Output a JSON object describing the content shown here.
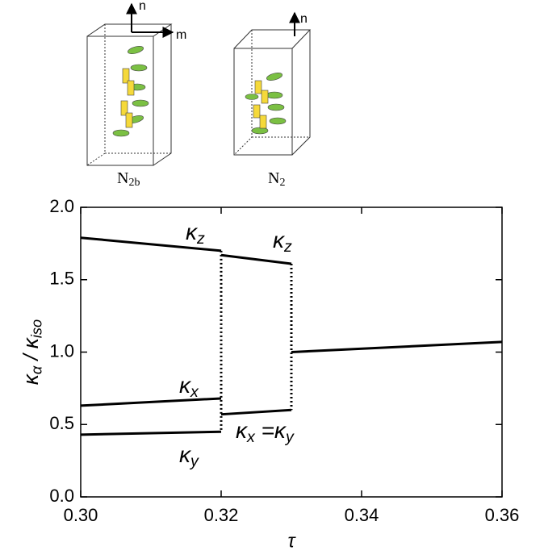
{
  "chart_data": {
    "type": "line",
    "x_label": "τ",
    "y_label": [
      {
        "text": "κ"
      },
      {
        "text": "α",
        "sub": true
      },
      {
        "text": " / κ"
      },
      {
        "text": "iso",
        "sub": true
      }
    ],
    "xlim": [
      0.3,
      0.36
    ],
    "xticks": [
      {
        "value": 0.3,
        "label": "0.30"
      },
      {
        "value": 0.32,
        "label": "0.32"
      },
      {
        "value": 0.34,
        "label": "0.34"
      },
      {
        "value": 0.36,
        "label": "0.36"
      }
    ],
    "ylim": [
      0,
      2
    ],
    "yticks": [
      {
        "value": 0,
        "label": "0.0"
      },
      {
        "value": 0.5,
        "label": "0.5"
      },
      {
        "value": 1,
        "label": "1.0"
      },
      {
        "value": 1.5,
        "label": "1.5"
      },
      {
        "value": 2,
        "label": "2.0"
      }
    ],
    "color": "#000000",
    "series": [
      {
        "label": [
          {
            "text": "κ"
          },
          {
            "text": "z",
            "sub": true
          }
        ],
        "x": [
          0.3,
          0.32
        ],
        "values": [
          1.79,
          1.7
        ]
      },
      {
        "label": [
          {
            "text": "κ"
          },
          {
            "text": "z",
            "sub": true
          }
        ],
        "x": [
          0.32,
          0.33
        ],
        "values": [
          1.67,
          1.61
        ]
      },
      {
        "label": [
          {
            "text": "κ"
          },
          {
            "text": "x",
            "sub": true
          }
        ],
        "x": [
          0.3,
          0.32
        ],
        "values": [
          0.63,
          0.68
        ]
      },
      {
        "label": [
          {
            "text": "κ"
          },
          {
            "text": "y",
            "sub": true
          }
        ],
        "x": [
          0.3,
          0.32
        ],
        "values": [
          0.43,
          0.45
        ]
      },
      {
        "label": [
          {
            "text": "κ"
          },
          {
            "text": "x",
            "sub": true
          },
          {
            "text": " =κ"
          },
          {
            "text": "y",
            "sub": true
          }
        ],
        "x": [
          0.32,
          0.33
        ],
        "values": [
          0.57,
          0.6
        ]
      },
      {
        "x": [
          0.33,
          0.36
        ],
        "values": [
          1.0,
          1.07
        ]
      }
    ],
    "insets": [
      {
        "label": "N",
        "subscript": "2b",
        "axes": [
          "n",
          "m"
        ]
      },
      {
        "label": "N",
        "subscript": "2",
        "axes": [
          "n"
        ]
      }
    ]
  }
}
